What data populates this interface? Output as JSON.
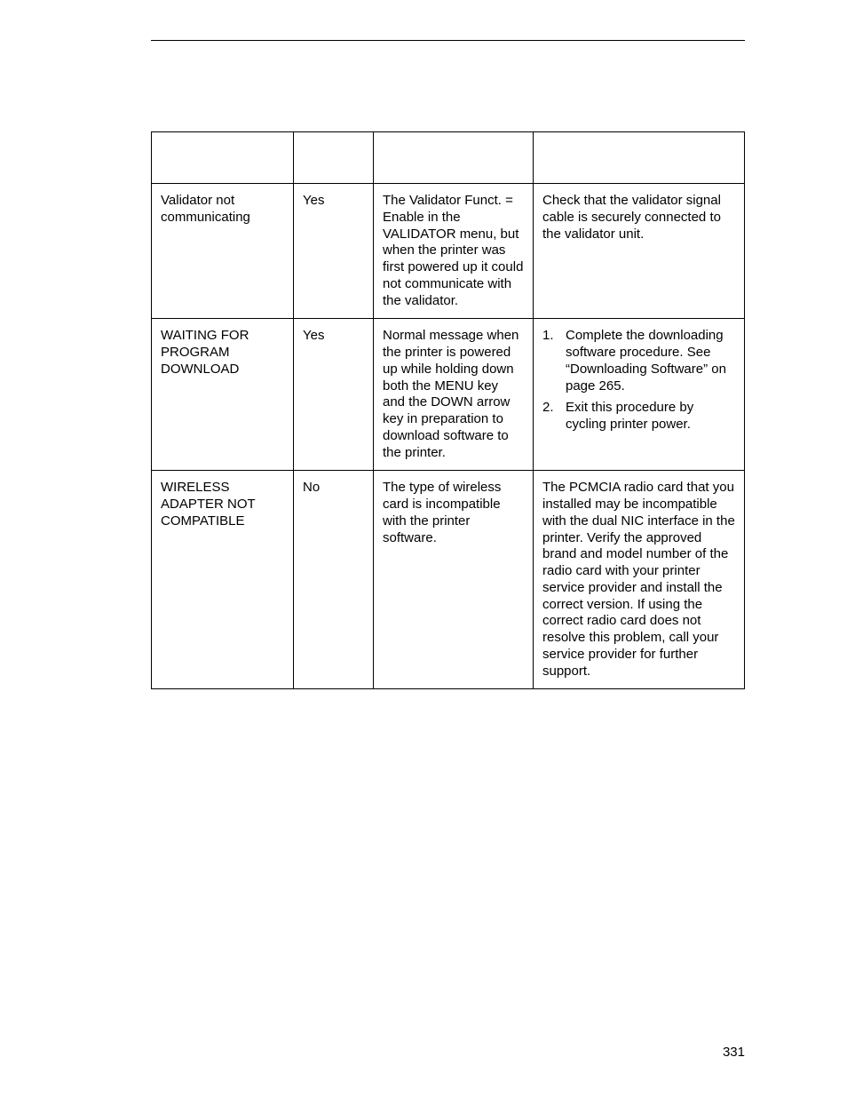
{
  "page_number": "331",
  "table": {
    "columns": [
      "",
      "",
      "",
      ""
    ],
    "rows": [
      {
        "message": "Validator not communicating",
        "recover": "Yes",
        "explanation": "The Validator Funct. = Enable in the VALIDATOR menu, but when the printer was first powered up it could not communicate with the validator.",
        "solution_type": "text",
        "solution_text": "Check that the validator signal cable is securely connected to the validator unit."
      },
      {
        "message": "WAITING FOR PROGRAM DOWNLOAD",
        "recover": "Yes",
        "explanation": "Normal message when the printer is powered up while holding down both the MENU key and the DOWN arrow key in preparation to download software to the printer.",
        "solution_type": "list",
        "solution_items": [
          "Complete the downloading software procedure. See “Downloading Software” on page 265.",
          "Exit this procedure by cycling printer power."
        ]
      },
      {
        "message": "WIRELESS ADAPTER NOT COMPATIBLE",
        "recover": "No",
        "explanation": "The type of wireless card is incompatible with the printer software.",
        "solution_type": "text",
        "solution_text": "The PCMCIA radio card that you installed may be incompatible with the dual NIC interface in the printer. Verify the approved brand and model number of the radio card with your printer service provider and install the correct version. If using the correct radio card does not resolve this problem, call your service provider for further support."
      }
    ]
  }
}
